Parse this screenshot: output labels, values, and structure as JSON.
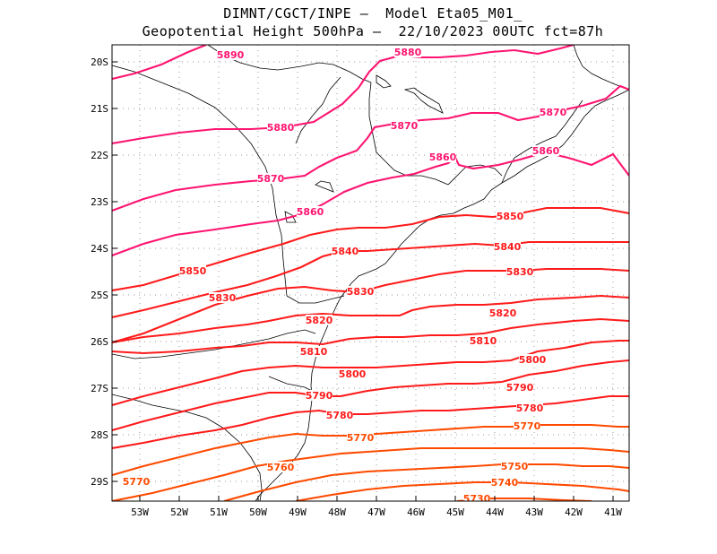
{
  "title": {
    "line1": "DIMNT/CGCT/INPE –  Model Eta05_M01_",
    "line2": "Geopotential Height 500hPa –  22/10/2023 00UTC fct=87h"
  },
  "axes": {
    "lon_labels": [
      "53W",
      "52W",
      "51W",
      "50W",
      "49W",
      "48W",
      "47W",
      "46W",
      "45W",
      "44W",
      "43W",
      "42W",
      "41W"
    ],
    "lat_labels": [
      "20S",
      "21S",
      "22S",
      "23S",
      "24S",
      "25S",
      "26S",
      "27S",
      "28S",
      "29S"
    ]
  },
  "colors": {
    "high": "#ff1470",
    "mid": "#ff1a1a",
    "low": "#ff4a00",
    "border": "#000000",
    "grid": "#9a9a9a"
  },
  "contours": [
    {
      "value": 5890,
      "label": "5890"
    },
    {
      "value": 5880,
      "label": "5880"
    },
    {
      "value": 5870,
      "label": "5870"
    },
    {
      "value": 5860,
      "label": "5860"
    },
    {
      "value": 5850,
      "label": "5850"
    },
    {
      "value": 5840,
      "label": "5840"
    },
    {
      "value": 5830,
      "label": "5830"
    },
    {
      "value": 5820,
      "label": "5820"
    },
    {
      "value": 5810,
      "label": "5810"
    },
    {
      "value": 5800,
      "label": "5800"
    },
    {
      "value": 5790,
      "label": "5790"
    },
    {
      "value": 5780,
      "label": "5780"
    },
    {
      "value": 5770,
      "label": "5770"
    },
    {
      "value": 5760,
      "label": "5760"
    },
    {
      "value": 5750,
      "label": "5750"
    },
    {
      "value": 5740,
      "label": "5740"
    },
    {
      "value": 5730,
      "label": "5730"
    }
  ]
}
